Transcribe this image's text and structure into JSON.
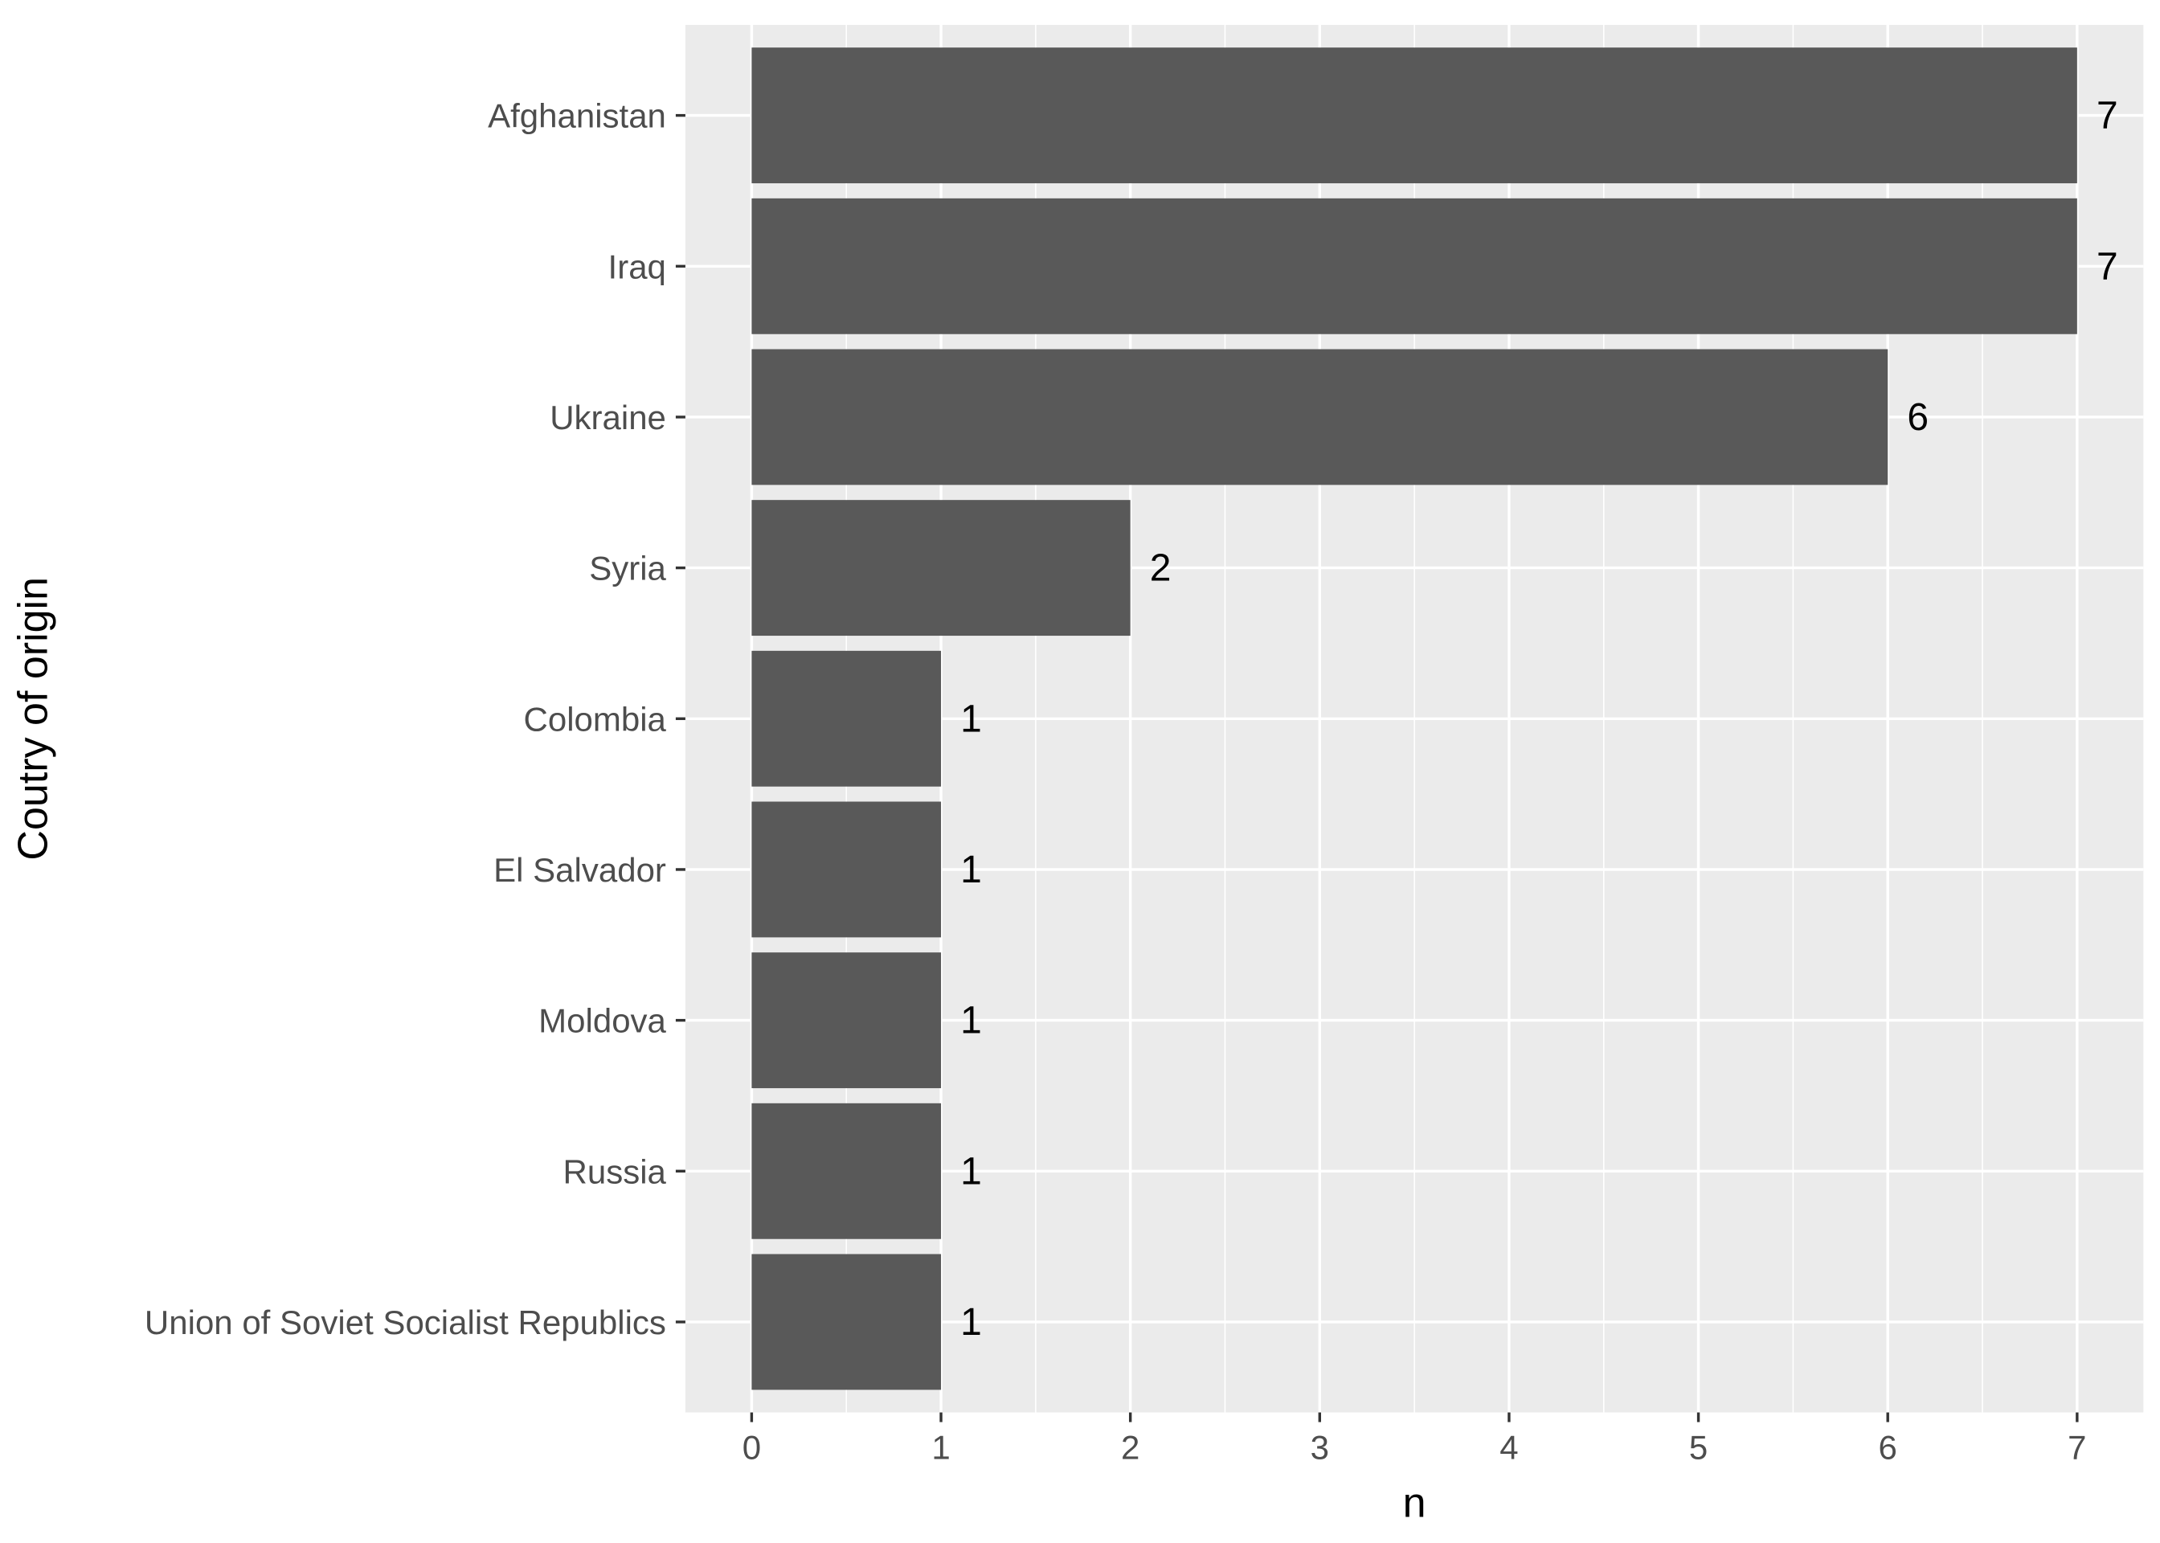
{
  "chart_data": {
    "type": "bar",
    "orientation": "horizontal",
    "categories": [
      "Afghanistan",
      "Iraq",
      "Ukraine",
      "Syria",
      "Colombia",
      "El Salvador",
      "Moldova",
      "Russia",
      "Union of Soviet Socialist Republics"
    ],
    "values": [
      7,
      7,
      6,
      2,
      1,
      1,
      1,
      1,
      1
    ],
    "data_labels": [
      "7",
      "7",
      "6",
      "2",
      "1",
      "1",
      "1",
      "1",
      "1"
    ],
    "xlabel": "n",
    "ylabel": "Coutry of origin",
    "xlim": [
      -0.35,
      7.35
    ],
    "x_ticks": [
      0,
      1,
      2,
      3,
      4,
      5,
      6,
      7
    ],
    "x_tick_labels": [
      "0",
      "1",
      "2",
      "3",
      "4",
      "5",
      "6",
      "7"
    ],
    "grid": true,
    "colors": {
      "panel_background": "#ebebeb",
      "grid": "#ffffff",
      "bar": "#595959",
      "tick_text": "#4d4d4d",
      "axis_title": "#000000"
    }
  }
}
